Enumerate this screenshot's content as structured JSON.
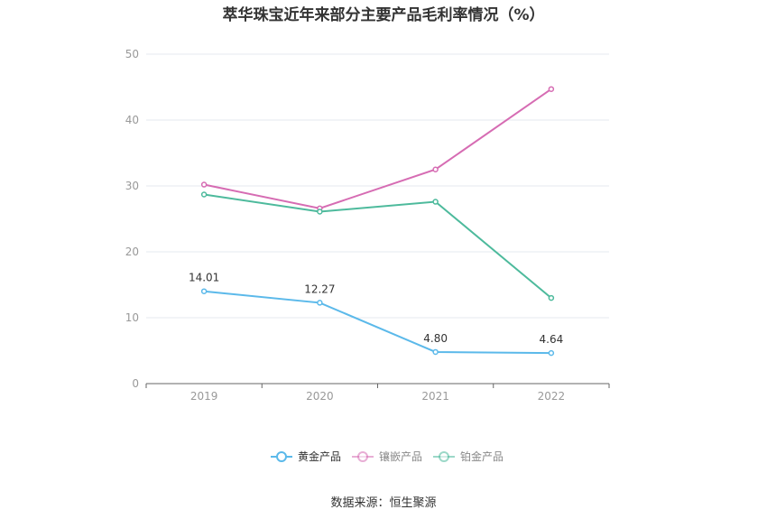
{
  "title": "萃华珠宝近年来部分主要产品毛利率情况（%）",
  "source": "数据来源：恒生聚源",
  "chart_data": {
    "type": "line",
    "categories": [
      "2019",
      "2020",
      "2021",
      "2022"
    ],
    "ylim": [
      0,
      50
    ],
    "yticks": [
      0,
      10,
      20,
      30,
      40,
      50
    ],
    "grid": true,
    "legend_position": "bottom",
    "series": [
      {
        "name": "黄金产品",
        "color": "#5bb9ea",
        "values": [
          14.01,
          12.27,
          4.8,
          4.64
        ],
        "labels": [
          "14.01",
          "12.27",
          "4.80",
          "4.64"
        ]
      },
      {
        "name": "镶嵌产品",
        "color": "#d66cb3",
        "values": [
          30.2,
          26.6,
          32.5,
          44.7
        ]
      },
      {
        "name": "铂金产品",
        "color": "#4dba9c",
        "values": [
          28.7,
          26.1,
          27.6,
          13.0
        ]
      }
    ]
  }
}
